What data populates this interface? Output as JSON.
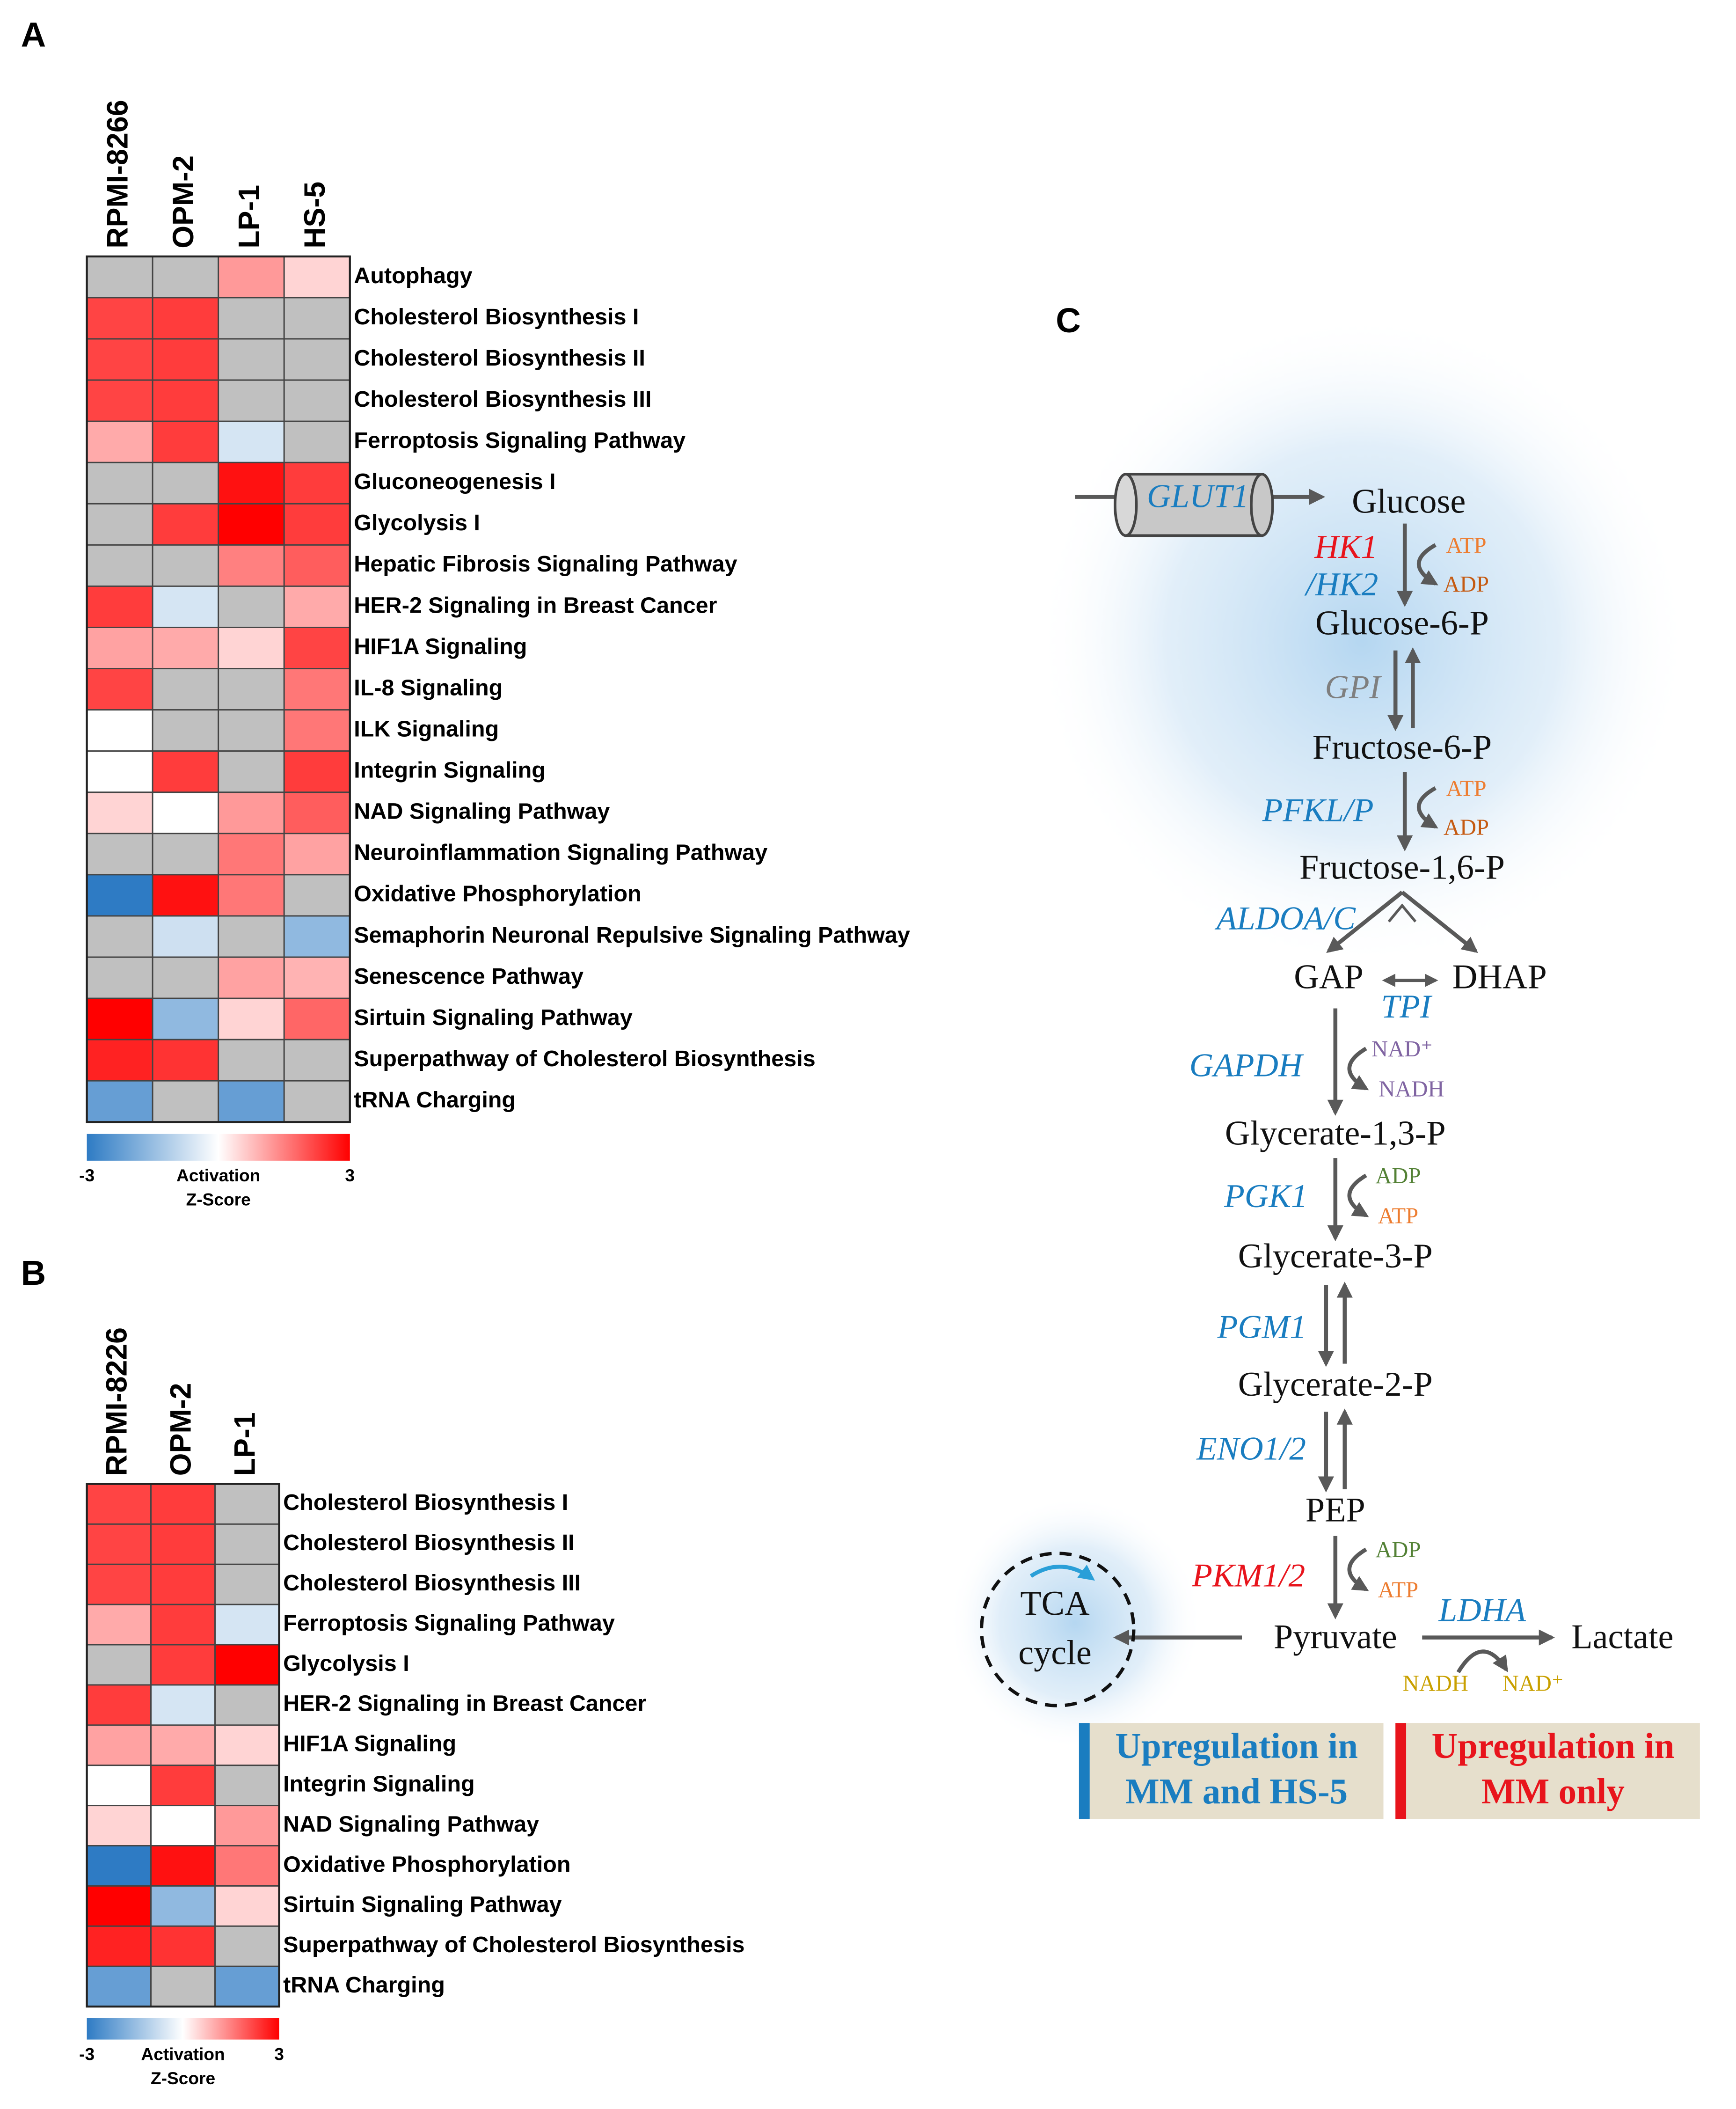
{
  "chart_data": [
    {
      "type": "heatmap",
      "label": "A",
      "x": [
        "RPMI-8266",
        "OPM-2",
        "LP-1",
        "HS-5"
      ],
      "y": [
        "Autophagy",
        "Cholesterol Biosynthesis I",
        "Cholesterol Biosynthesis II",
        "Cholesterol Biosynthesis III",
        "Ferroptosis Signaling Pathway",
        "Gluconeogenesis I",
        "Glycolysis I",
        "Hepatic Fibrosis Signaling Pathway",
        "HER-2 Signaling in Breast Cancer",
        "HIF1A Signaling",
        "IL-8 Signaling",
        "ILK Signaling",
        "Integrin Signaling",
        "NAD Signaling Pathway",
        "Neuroinflammation Signaling Pathway",
        "Oxidative Phosphorylation",
        "Semaphorin Neuronal Repulsive Signaling Pathway",
        "Senescence Pathway",
        "Sirtuin Signaling Pathway",
        "Superpathway of Cholesterol Biosynthesis",
        "tRNA Charging"
      ],
      "values": [
        [
          null,
          null,
          1.2,
          0.5
        ],
        [
          2.2,
          2.3,
          null,
          null
        ],
        [
          2.2,
          2.3,
          null,
          null
        ],
        [
          2.2,
          2.3,
          null,
          null
        ],
        [
          1.0,
          2.3,
          -0.6,
          null
        ],
        [
          null,
          null,
          2.8,
          2.3
        ],
        [
          null,
          2.3,
          3.0,
          2.3
        ],
        [
          null,
          null,
          1.5,
          1.9
        ],
        [
          2.3,
          -0.6,
          null,
          1.0
        ],
        [
          1.1,
          1.0,
          0.5,
          2.2
        ],
        [
          2.2,
          null,
          null,
          1.6
        ],
        [
          0,
          null,
          null,
          1.6
        ],
        [
          0,
          2.3,
          null,
          2.3
        ],
        [
          0.5,
          0,
          1.2,
          1.9
        ],
        [
          null,
          null,
          1.6,
          1.1
        ],
        [
          -3,
          2.8,
          1.6,
          null
        ],
        [
          null,
          -0.7,
          null,
          -1.6
        ],
        [
          null,
          null,
          1.1,
          0.9
        ],
        [
          3.0,
          -1.6,
          0.5,
          1.8
        ],
        [
          2.6,
          2.4,
          null,
          null
        ],
        [
          -2.2,
          null,
          -2.2,
          null
        ]
      ],
      "zlim": [
        -3,
        3
      ],
      "zticks": [
        -3,
        3
      ],
      "colorbar_label": [
        "Activation",
        "Z-Score"
      ],
      "colormap": [
        "#2e7bc4",
        "#ffffff",
        "#ff0000"
      ],
      "missing_color": "#c0c0c0"
    },
    {
      "type": "heatmap",
      "label": "B",
      "x": [
        "RPMI-8226",
        "OPM-2",
        "LP-1"
      ],
      "y": [
        "Cholesterol Biosynthesis I",
        "Cholesterol Biosynthesis II",
        "Cholesterol Biosynthesis III",
        "Ferroptosis Signaling Pathway",
        "Glycolysis I",
        "HER-2 Signaling in Breast Cancer",
        "HIF1A Signaling",
        "Integrin Signaling",
        "NAD Signaling Pathway",
        "Oxidative Phosphorylation",
        "Sirtuin Signaling Pathway",
        "Superpathway of Cholesterol Biosynthesis",
        "tRNA Charging"
      ],
      "values": [
        [
          2.2,
          2.3,
          null
        ],
        [
          2.2,
          2.3,
          null
        ],
        [
          2.2,
          2.3,
          null
        ],
        [
          1.0,
          2.3,
          -0.6
        ],
        [
          null,
          2.3,
          3.0
        ],
        [
          2.3,
          -0.6,
          null
        ],
        [
          1.1,
          1.0,
          0.5
        ],
        [
          0,
          2.3,
          null
        ],
        [
          0.5,
          0,
          1.2
        ],
        [
          -3,
          2.8,
          1.6
        ],
        [
          3.0,
          -1.6,
          0.5
        ],
        [
          2.6,
          2.4,
          null
        ],
        [
          -2.2,
          null,
          -2.2
        ]
      ],
      "zlim": [
        -3,
        3
      ],
      "zticks": [
        -3,
        3
      ],
      "colorbar_label": [
        "Activation",
        "Z-Score"
      ],
      "colormap": [
        "#2e7bc4",
        "#ffffff",
        "#ff0000"
      ],
      "missing_color": "#c0c0c0"
    }
  ],
  "diagram": {
    "label": "C",
    "transporter": "GLUT1",
    "metabolites": [
      "Glucose",
      "Glucose-6-P",
      "Fructose-6-P",
      "Fructose-1,6-P",
      "GAP",
      "DHAP",
      "Glycerate-1,3-P",
      "Glycerate-3-P",
      "Glycerate-2-P",
      "PEP",
      "Pyruvate",
      "Lactate"
    ],
    "cycle": [
      "TCA",
      "cycle"
    ],
    "enzymes": [
      "HK1",
      "/HK2",
      "GPI",
      "PFKL/P",
      "ALDOA/C",
      "TPI",
      "GAPDH",
      "PGK1",
      "PGM1",
      "ENO1/2",
      "PKM1/2",
      "LDHA"
    ],
    "cofactors": [
      "ATP",
      "ADP",
      "ATP",
      "ADP",
      "NAD⁺",
      "NADH",
      "ADP",
      "ATP",
      "ADP",
      "ATP",
      "NADH",
      "NAD⁺"
    ],
    "legend": [
      [
        "Upregulation in",
        "MM and HS-5"
      ],
      [
        "Upregulation in",
        "MM only"
      ]
    ]
  }
}
